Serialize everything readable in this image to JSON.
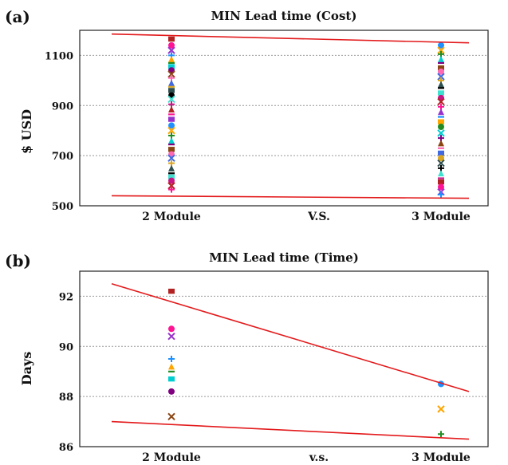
{
  "chart_data": [
    {
      "panel_label": "(a)",
      "type": "scatter",
      "title": "MIN Lead time (Cost)",
      "ylabel": "$ USD",
      "categories": [
        "2 Module",
        "V.S.",
        "3 Module"
      ],
      "ylim": [
        500,
        1200
      ],
      "yticks": [
        500,
        700,
        900,
        1100
      ],
      "grid": true,
      "series": [
        {
          "x": "2 Module",
          "values": [
            1165,
            1140,
            1120,
            1100,
            1085,
            1070,
            1055,
            1040,
            1025,
            1010,
            990,
            975,
            960,
            940,
            925,
            905,
            885,
            865,
            845,
            820,
            800,
            780,
            760,
            745,
            725,
            705,
            690,
            670,
            650,
            630,
            615,
            600,
            580,
            565
          ]
        },
        {
          "x": "3 Module",
          "values": [
            1140,
            1120,
            1105,
            1085,
            1070,
            1050,
            1035,
            1015,
            1000,
            985,
            970,
            950,
            930,
            915,
            895,
            875,
            855,
            835,
            815,
            790,
            770,
            750,
            730,
            710,
            690,
            670,
            650,
            630,
            610,
            595,
            575,
            555,
            545
          ]
        }
      ],
      "trend_lines": [
        {
          "from": [
            "2 Module",
            1185
          ],
          "to": [
            "3 Module",
            1150
          ]
        },
        {
          "from": [
            "2 Module",
            540
          ],
          "to": [
            "3 Module",
            530
          ]
        }
      ]
    },
    {
      "panel_label": "(b)",
      "type": "scatter",
      "title": "MIN Lead time (Time)",
      "ylabel": "Days",
      "categories": [
        "2 Module",
        "v.s.",
        "3 Module"
      ],
      "ylim": [
        86,
        93
      ],
      "yticks": [
        86,
        88,
        90,
        92
      ],
      "grid": true,
      "series": [
        {
          "x": "2 Module",
          "values": [
            92.2,
            90.7,
            90.4,
            89.5,
            89.2,
            89.0,
            88.7,
            88.2,
            87.2
          ]
        },
        {
          "x": "3 Module",
          "values": [
            88.5,
            87.5,
            86.5
          ]
        }
      ],
      "trend_lines": [
        {
          "from": [
            "2 Module",
            92.5
          ],
          "to": [
            "3 Module",
            88.2
          ]
        },
        {
          "from": [
            "2 Module",
            87.0
          ],
          "to": [
            "3 Module",
            86.3
          ]
        }
      ]
    }
  ],
  "colors": {
    "trend": "#e31a1c",
    "markers": [
      "#b22222",
      "#ff1493",
      "#9932cc",
      "#1e90ff",
      "#ffa500",
      "#228b22",
      "#00ced1",
      "#800080",
      "#8b4513",
      "#ff69b4",
      "#4169e1",
      "#daa520",
      "#2f4f4f",
      "#000000",
      "#40e0d0",
      "#c71585"
    ]
  }
}
